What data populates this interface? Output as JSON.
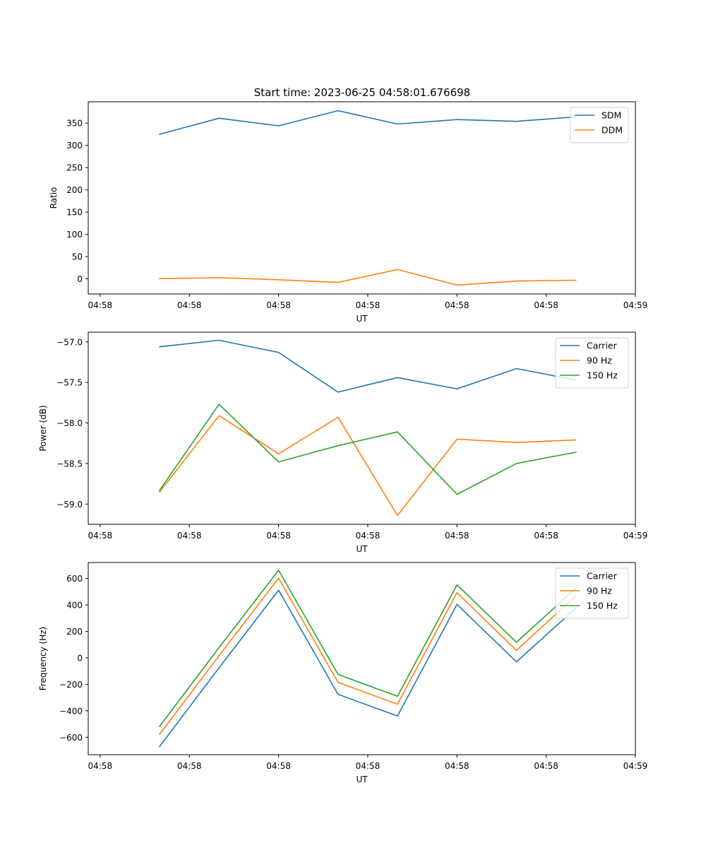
{
  "figure": {
    "title": "Start time: 2023-06-25 04:58:01.676698"
  },
  "colors": {
    "blue": "#1f77b4",
    "orange": "#ff7f0e",
    "green": "#2ca02c"
  },
  "chart_data": [
    {
      "type": "line",
      "title": "Start time: 2023-06-25 04:58:01.676698",
      "xlabel": "UT",
      "ylabel": "Ratio",
      "x": [
        1,
        2,
        3,
        4,
        5,
        6,
        7,
        8
      ],
      "xticks": [
        0,
        1.5,
        3,
        4.5,
        6,
        7.5,
        9
      ],
      "xtick_labels": [
        "04:58",
        "04:58",
        "04:58",
        "04:58",
        "04:58",
        "04:58",
        "04:59"
      ],
      "xlim": [
        -0.2,
        9.0
      ],
      "ylim": [
        -34,
        398
      ],
      "yticks": [
        0,
        50,
        100,
        150,
        200,
        250,
        300,
        350
      ],
      "ytick_labels": [
        "0",
        "50",
        "100",
        "150",
        "200",
        "250",
        "300",
        "350"
      ],
      "legend": "top-right",
      "grid": false,
      "series": [
        {
          "name": "SDM",
          "color": "#1f77b4",
          "values": [
            325,
            361,
            344,
            378,
            348,
            358,
            354,
            364
          ]
        },
        {
          "name": "DDM",
          "color": "#ff7f0e",
          "values": [
            0.5,
            2.5,
            -2,
            -8,
            21,
            -14,
            -5,
            -3
          ]
        }
      ]
    },
    {
      "type": "line",
      "title": "",
      "xlabel": "UT",
      "ylabel": "Power (dB)",
      "x": [
        1,
        2,
        3,
        4,
        5,
        6,
        7,
        8
      ],
      "xticks": [
        0,
        1.5,
        3,
        4.5,
        6,
        7.5,
        9
      ],
      "xtick_labels": [
        "04:58",
        "04:58",
        "04:58",
        "04:58",
        "04:58",
        "04:58",
        "04:59"
      ],
      "xlim": [
        -0.2,
        9.0
      ],
      "ylim": [
        -59.25,
        -56.88
      ],
      "yticks": [
        -59.0,
        -58.5,
        -58.0,
        -57.5,
        -57.0
      ],
      "ytick_labels": [
        "−59.0",
        "−58.5",
        "−58.0",
        "−57.5",
        "−57.0"
      ],
      "legend": "top-right",
      "grid": false,
      "series": [
        {
          "name": "Carrier",
          "color": "#1f77b4",
          "values": [
            -57.06,
            -56.98,
            -57.13,
            -57.62,
            -57.44,
            -57.58,
            -57.33,
            -57.47
          ]
        },
        {
          "name": "90 Hz",
          "color": "#ff7f0e",
          "values": [
            -58.85,
            -57.91,
            -58.38,
            -57.93,
            -59.14,
            -58.2,
            -58.24,
            -58.21
          ]
        },
        {
          "name": "150 Hz",
          "color": "#2ca02c",
          "values": [
            -58.83,
            -57.77,
            -58.48,
            -58.28,
            -58.11,
            -58.88,
            -58.5,
            -58.36
          ]
        }
      ]
    },
    {
      "type": "line",
      "title": "",
      "xlabel": "UT",
      "ylabel": "Frequency (Hz)",
      "x": [
        1,
        2,
        3,
        4,
        5,
        6,
        7,
        8
      ],
      "xticks": [
        0,
        1.5,
        3,
        4.5,
        6,
        7.5,
        9
      ],
      "xtick_labels": [
        "04:58",
        "04:58",
        "04:58",
        "04:58",
        "04:58",
        "04:58",
        "04:59"
      ],
      "xlim": [
        -0.2,
        9.0
      ],
      "ylim": [
        -732,
        721
      ],
      "yticks": [
        -600,
        -400,
        -200,
        0,
        200,
        400,
        600
      ],
      "ytick_labels": [
        "−600",
        "−400",
        "−200",
        "0",
        "200",
        "400",
        "600"
      ],
      "legend": "top-right",
      "grid": false,
      "series": [
        {
          "name": "Carrier",
          "color": "#1f77b4",
          "values": [
            -670,
            -75,
            512,
            -275,
            -440,
            405,
            -30,
            377
          ]
        },
        {
          "name": "90 Hz",
          "color": "#ff7f0e",
          "values": [
            -577,
            17,
            603,
            -185,
            -350,
            493,
            57,
            470
          ]
        },
        {
          "name": "150 Hz",
          "color": "#2ca02c",
          "values": [
            -517,
            78,
            663,
            -125,
            -290,
            552,
            118,
            527
          ]
        }
      ]
    }
  ]
}
